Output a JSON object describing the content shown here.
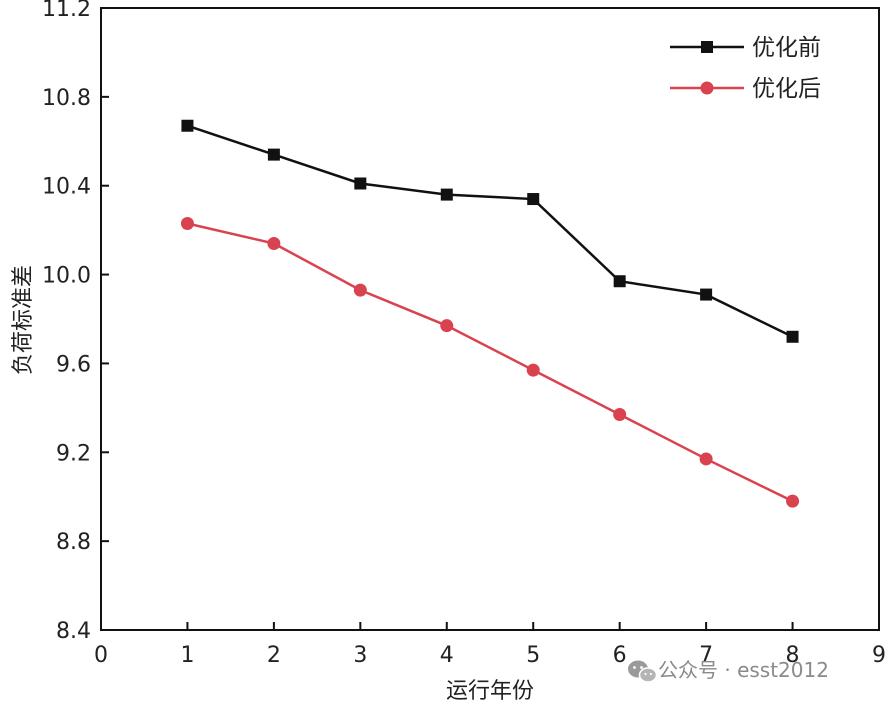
{
  "chart_data": {
    "type": "line",
    "xlabel": "运行年份",
    "ylabel": "负荷标准差",
    "xlim": [
      0,
      9
    ],
    "ylim": [
      8.4,
      11.2
    ],
    "x_ticks": [
      "0",
      "1",
      "2",
      "3",
      "4",
      "5",
      "6",
      "7",
      "8",
      "9"
    ],
    "y_ticks": [
      "8.4",
      "8.8",
      "9.2",
      "9.6",
      "10.0",
      "10.4",
      "10.8",
      "11.2"
    ],
    "grid": false,
    "legend_position": "top-right",
    "x": [
      1,
      2,
      3,
      4,
      5,
      6,
      7,
      8
    ],
    "series": [
      {
        "name": "优化前",
        "marker": "square",
        "color": "#111111",
        "values": [
          10.67,
          10.54,
          10.41,
          10.36,
          10.34,
          9.97,
          9.91,
          9.72
        ]
      },
      {
        "name": "优化后",
        "marker": "circle",
        "color": "#d9434f",
        "values": [
          10.23,
          10.14,
          9.93,
          9.77,
          9.57,
          9.37,
          9.17,
          8.98
        ]
      }
    ]
  },
  "watermark": {
    "text": "公众号 · esst2012",
    "icon": "wechat-icon"
  }
}
